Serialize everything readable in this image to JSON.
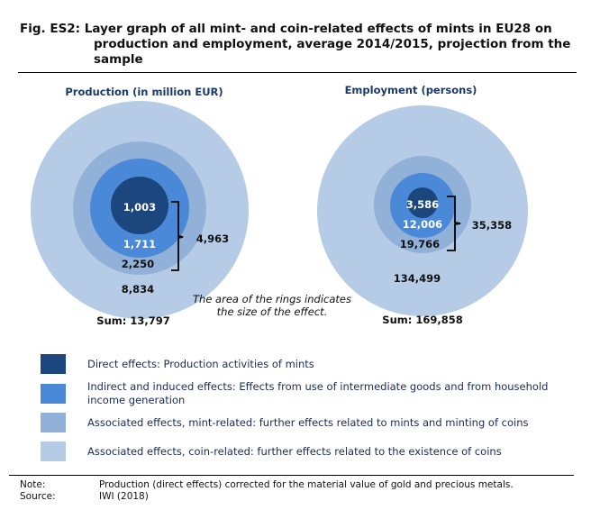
{
  "title": {
    "prefix": "Fig. ES2:",
    "line1": "Layer graph of all mint- and coin-related effects of mints in EU28 on",
    "line2": "production and employment, average 2014/2015, projection from the",
    "line3": "sample"
  },
  "colors": {
    "direct": "#1b467e",
    "indirect": "#4a88d8",
    "mint_related": "#92b1d9",
    "coin_related": "#b6cce6",
    "text": "#1a2a5a"
  },
  "production": {
    "heading": "Production (in million EUR)",
    "direct": "1,003",
    "indirect": "1,711",
    "mint_related": "2,250",
    "coin_related": "8,834",
    "bracket_total": "4,963",
    "sum": "Sum: 13,797"
  },
  "employment": {
    "heading": "Employment (persons)",
    "direct": "3,586",
    "indirect": "12,006",
    "mint_related": "19,766",
    "coin_related": "134,499",
    "bracket_total": "35,358",
    "sum": "Sum: 169,858"
  },
  "annotation": {
    "line1": "The area of the rings indicates",
    "line2": "the size of the effect."
  },
  "legend": [
    {
      "label": "Direct effects: Production activities of mints"
    },
    {
      "label": "Indirect and induced effects: Effects from use of intermediate goods and from household income generation"
    },
    {
      "label": "Associated effects, mint-related: further effects related to mints and minting of coins"
    },
    {
      "label": "Associated effects, coin-related: further effects related to the existence of coins"
    }
  ],
  "footer": {
    "note_key": "Note:",
    "note": "Production (direct effects) corrected for the material value of gold and precious metals.",
    "source_key": "Source:",
    "source": "IWI (2018)"
  }
}
